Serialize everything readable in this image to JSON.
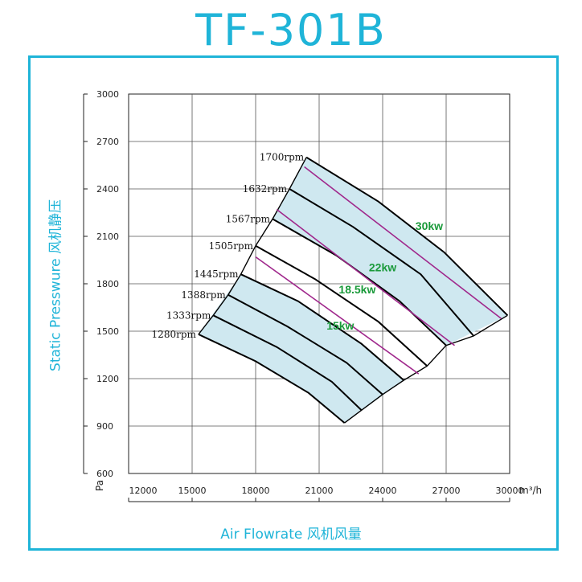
{
  "title": "TF-301B",
  "chart_data": {
    "type": "line",
    "title": "TF-301B",
    "xlabel": "Air Flowrate  风机风量",
    "ylabel": "Static Presswure  风机静压",
    "x_unit": "m³/h",
    "y_unit": "Pa",
    "xlim": [
      12000,
      30000
    ],
    "ylim": [
      600,
      3000
    ],
    "x_ticks": [
      12000,
      15000,
      18000,
      21000,
      24000,
      27000,
      30000
    ],
    "y_ticks": [
      600,
      900,
      1200,
      1500,
      1800,
      2100,
      2400,
      2700,
      3000
    ],
    "grid": true,
    "rpm_curves": [
      {
        "label": "1280rpm",
        "points": [
          [
            15300,
            1480
          ],
          [
            18000,
            1310
          ],
          [
            20500,
            1110
          ],
          [
            22200,
            920
          ]
        ]
      },
      {
        "label": "1333rpm",
        "points": [
          [
            16000,
            1600
          ],
          [
            19000,
            1400
          ],
          [
            21600,
            1180
          ],
          [
            23000,
            1000
          ]
        ]
      },
      {
        "label": "1388rpm",
        "points": [
          [
            16700,
            1730
          ],
          [
            19500,
            1530
          ],
          [
            22300,
            1300
          ],
          [
            24000,
            1100
          ]
        ]
      },
      {
        "label": "1445rpm",
        "points": [
          [
            17300,
            1860
          ],
          [
            20000,
            1690
          ],
          [
            23000,
            1420
          ],
          [
            25000,
            1190
          ]
        ]
      },
      {
        "label": "1505rpm",
        "points": [
          [
            18000,
            2040
          ],
          [
            20800,
            1830
          ],
          [
            23800,
            1560
          ],
          [
            26100,
            1280
          ]
        ]
      },
      {
        "label": "1567rpm",
        "points": [
          [
            18800,
            2210
          ],
          [
            21800,
            1980
          ],
          [
            24800,
            1690
          ],
          [
            27000,
            1410
          ]
        ]
      },
      {
        "label": "1632rpm",
        "points": [
          [
            19600,
            2400
          ],
          [
            22600,
            2160
          ],
          [
            25800,
            1860
          ],
          [
            28300,
            1470
          ]
        ]
      },
      {
        "label": "1700rpm",
        "points": [
          [
            20400,
            2600
          ],
          [
            23800,
            2320
          ],
          [
            26900,
            2000
          ],
          [
            29900,
            1600
          ]
        ]
      }
    ],
    "power_lines": [
      {
        "label": "15kw",
        "points": [
          [
            18000,
            1970
          ],
          [
            25700,
            1230
          ]
        ]
      },
      {
        "label": "18.5kw",
        "points": [
          [
            19000,
            2270
          ],
          [
            27400,
            1410
          ]
        ]
      },
      {
        "label": "22kw",
        "points": [
          [
            20300,
            2540
          ],
          [
            29600,
            1580
          ]
        ]
      },
      {
        "label": "30kw",
        "points": []
      }
    ],
    "power_labels": [
      {
        "label": "15kw",
        "x": 22000,
        "y": 1510
      },
      {
        "label": "18.5kw",
        "x": 22800,
        "y": 1740
      },
      {
        "label": "22kw",
        "x": 24000,
        "y": 1880
      },
      {
        "label": "30kw",
        "x": 26200,
        "y": 2140
      }
    ],
    "colors": {
      "accent": "#1fb4d8",
      "band_fill": "#cfe8f0",
      "power_line": "#a0288c",
      "power_label": "#1a9a3a",
      "curve": "#000000",
      "grid": "#555555"
    }
  }
}
